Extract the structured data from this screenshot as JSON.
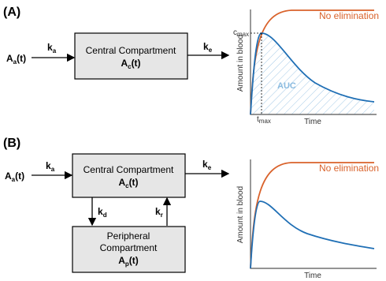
{
  "panels": [
    {
      "label": "(A)",
      "input": {
        "main": "A",
        "sub": "a",
        "tail": "(t)"
      },
      "ka": {
        "main": "k",
        "sub": "a"
      },
      "central": {
        "title": "Central Compartment",
        "amount": {
          "main": "A",
          "sub": "c",
          "tail": "(t)"
        }
      },
      "ke": {
        "main": "k",
        "sub": "e"
      },
      "plot": {
        "legend": "No elimination",
        "ylabel": "Amount in blood",
        "xlabel": "Time",
        "cmax": {
          "main": "c",
          "sub": "max"
        },
        "tmax": {
          "main": "t",
          "sub": "max"
        },
        "auc": "AUC"
      }
    },
    {
      "label": "(B)",
      "input": {
        "main": "A",
        "sub": "a",
        "tail": "(t)"
      },
      "ka": {
        "main": "k",
        "sub": "a"
      },
      "central": {
        "title": "Central Compartment",
        "amount": {
          "main": "A",
          "sub": "c",
          "tail": "(t)"
        }
      },
      "ke": {
        "main": "k",
        "sub": "e"
      },
      "kd": {
        "main": "k",
        "sub": "d"
      },
      "kr": {
        "main": "k",
        "sub": "r"
      },
      "peripheral": {
        "title": [
          "Peripheral",
          "Compartment"
        ],
        "amount": {
          "main": "A",
          "sub": "p",
          "tail": "(t)"
        }
      },
      "plot": {
        "legend": "No elimination",
        "ylabel": "Amount in blood",
        "xlabel": "Time"
      }
    }
  ]
}
